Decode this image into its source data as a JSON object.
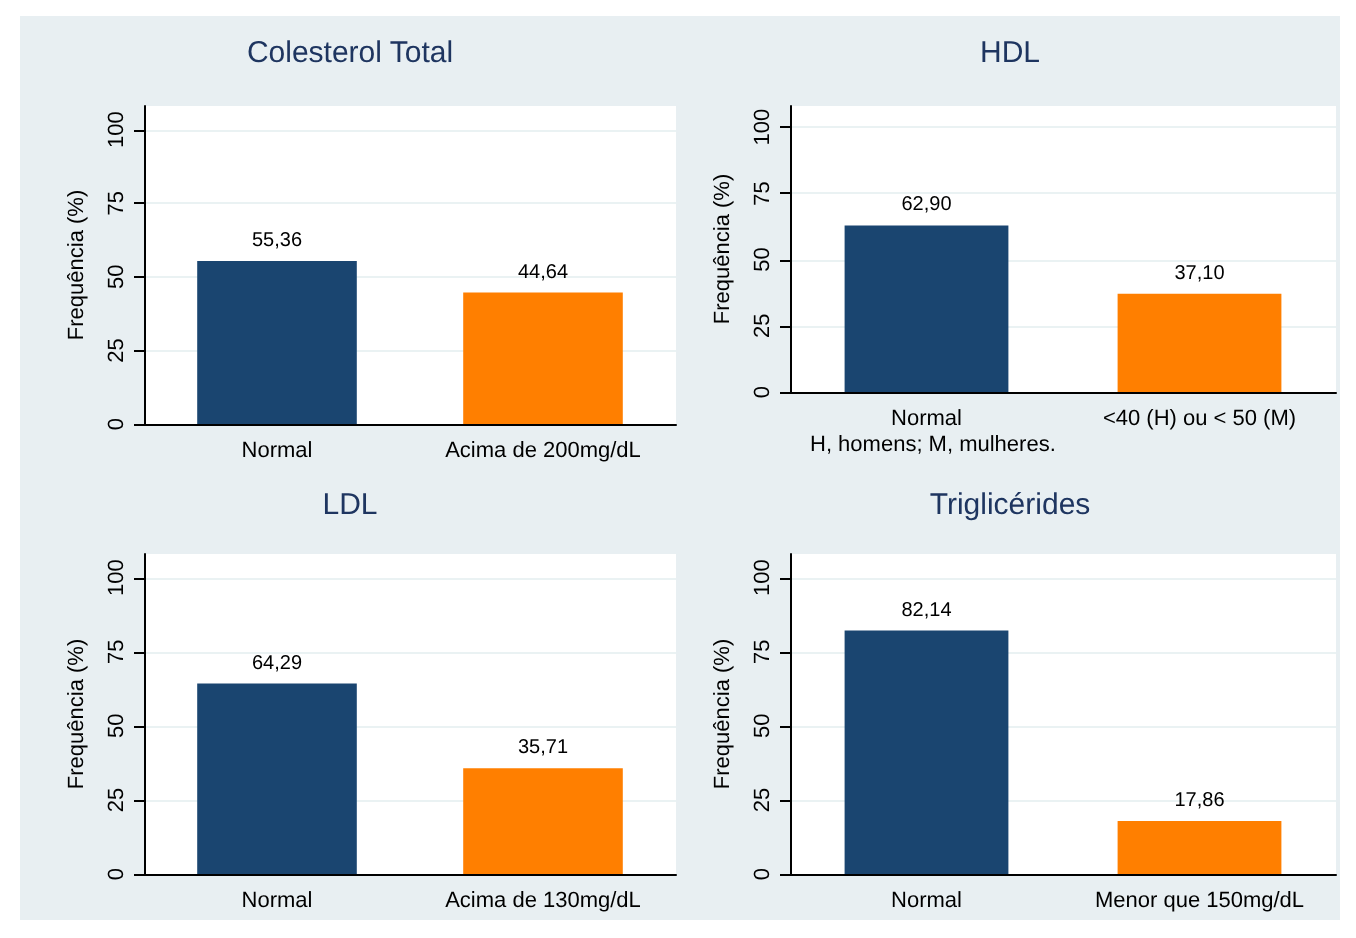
{
  "chart_data": [
    {
      "type": "bar",
      "title": "Colesterol Total",
      "ylabel": "Frequência (%)",
      "categories": [
        "Normal",
        "Acima de 200mg/dL"
      ],
      "values": [
        55.36,
        44.64
      ],
      "value_labels": [
        "55,36",
        "44,64"
      ],
      "colors": [
        "#1a4570",
        "#ff7f00"
      ],
      "ylim": [
        0,
        108
      ],
      "yticks": [
        0,
        25,
        50,
        75,
        100
      ],
      "grid": "y"
    },
    {
      "type": "bar",
      "title": "HDL",
      "ylabel": "Frequência (%)",
      "categories": [
        "Normal",
        "<40 (H) ou < 50 (M)"
      ],
      "values": [
        62.9,
        37.1
      ],
      "value_labels": [
        "62,90",
        "37,10"
      ],
      "colors": [
        "#1a4570",
        "#ff7f00"
      ],
      "ylim": [
        0,
        108
      ],
      "yticks": [
        0,
        25,
        50,
        75,
        100
      ],
      "grid": "y",
      "annotations": [
        "H, homens; M, mulheres."
      ]
    },
    {
      "type": "bar",
      "title": "LDL",
      "ylabel": "Frequência (%)",
      "categories": [
        "Normal",
        "Acima de 130mg/dL"
      ],
      "values": [
        64.29,
        35.71
      ],
      "value_labels": [
        "64,29",
        "35,71"
      ],
      "colors": [
        "#1a4570",
        "#ff7f00"
      ],
      "ylim": [
        0,
        108
      ],
      "yticks": [
        0,
        25,
        50,
        75,
        100
      ],
      "grid": "y"
    },
    {
      "type": "bar",
      "title": "Triglicérides",
      "ylabel": "Frequência (%)",
      "categories": [
        "Normal",
        "Menor que 150mg/dL"
      ],
      "values": [
        82.14,
        17.86
      ],
      "value_labels": [
        "82,14",
        "17,86"
      ],
      "colors": [
        "#1a4570",
        "#ff7f00"
      ],
      "ylim": [
        0,
        108
      ],
      "yticks": [
        0,
        25,
        50,
        75,
        100
      ],
      "grid": "y"
    }
  ]
}
